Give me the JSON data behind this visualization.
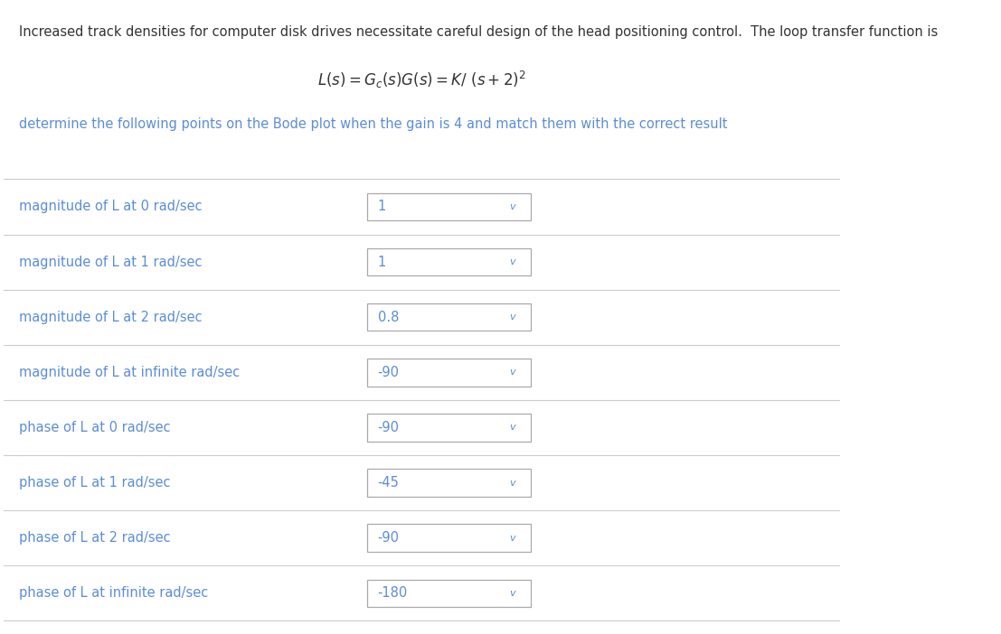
{
  "title_text": "Increased track densities for computer disk drives necessitate careful design of the head positioning control.  The loop transfer function is",
  "subtitle": "determine the following points on the Bode plot when the gain is 4 and match them with the correct result",
  "title_color": "#333333",
  "label_color": "#5b8dd9",
  "bg_color": "#ffffff",
  "rows": [
    {
      "label": "magnitude of L at 0 rad/sec",
      "value": "1"
    },
    {
      "label": "magnitude of L at 1 rad/sec",
      "value": "1"
    },
    {
      "label": "magnitude of L at 2 rad/sec",
      "value": "0.8"
    },
    {
      "label": "magnitude of L at infinite rad/sec",
      "value": "-90"
    },
    {
      "label": "phase of L at 0 rad/sec",
      "value": "-90"
    },
    {
      "label": "phase of L at 1 rad/sec",
      "value": "-45"
    },
    {
      "label": "phase of L at 2 rad/sec",
      "value": "-90"
    },
    {
      "label": "phase of L at infinite rad/sec",
      "value": "-180"
    }
  ],
  "box_color": "#ffffff",
  "box_edge_color": "#aaaaaa",
  "dropdown_color": "#5b8dd9",
  "separator_color": "#cccccc",
  "label_fontsize": 10.5,
  "title_fontsize": 10.5,
  "formula_fontsize": 12,
  "value_fontsize": 10.5,
  "fig_width": 11.07,
  "fig_height": 7.02
}
